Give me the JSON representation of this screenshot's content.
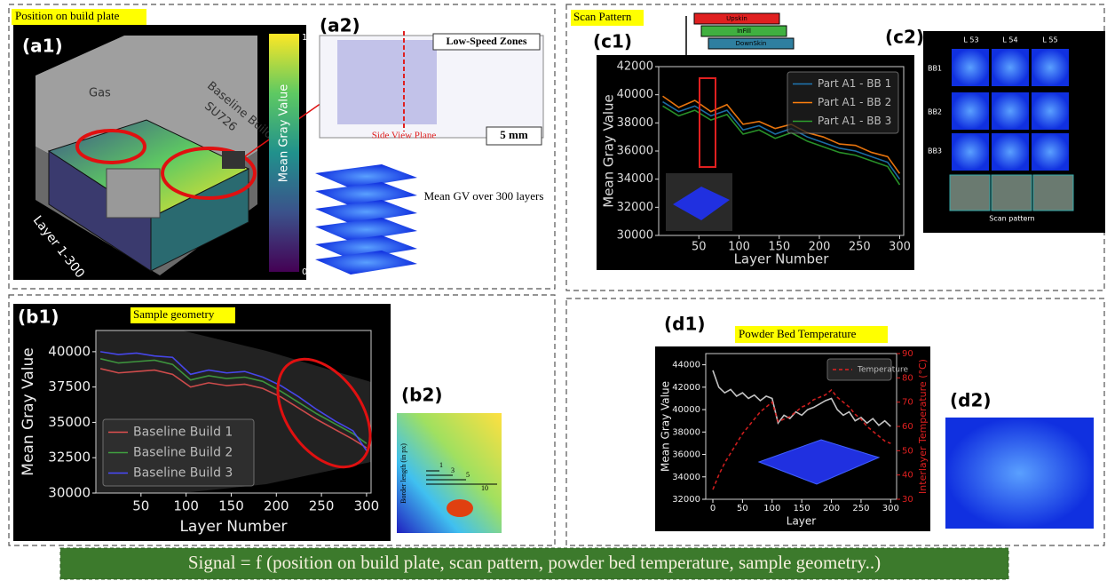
{
  "panels": {
    "a1": {
      "label": "(a1)",
      "header": "Position on build plate",
      "texts": [
        "Gas",
        "Baseline Build",
        "SU726",
        "Layer 1-300"
      ],
      "colorbar": {
        "label": "Mean Gray Value",
        "top": "1",
        "bottom": "0"
      }
    },
    "a2": {
      "label": "(a2)",
      "zones": "Low-Speed Zones",
      "plane": "Side View Plane",
      "scale": "5 mm",
      "caption": "Mean GV over 300 layers"
    },
    "c1": {
      "label": "(c1)",
      "header": "Scan Pattern",
      "stack": [
        "Upskin",
        "InFill",
        "DownSkin"
      ]
    },
    "c2": {
      "label": "(c2)",
      "columns": [
        "L 53",
        "L 54",
        "L 55"
      ],
      "rows": [
        "BB1",
        "BB2",
        "BB3"
      ],
      "caption": "Scan pattern"
    },
    "b1": {
      "label": "(b1)",
      "header": "Sample geometry"
    },
    "b2": {
      "label": "(b2)",
      "axis": "Border length (in px)",
      "marks": [
        "1",
        "3",
        "5",
        "10"
      ]
    },
    "d1": {
      "label": "(d1)",
      "header": "Powder Bed Temperature"
    },
    "d2": {
      "label": "(d2)"
    }
  },
  "chart_data": [
    {
      "type": "line",
      "xlabel": "Layer Number",
      "ylabel": "Mean Gray Value",
      "x": [
        5,
        25,
        45,
        65,
        85,
        105,
        125,
        145,
        165,
        185,
        205,
        225,
        245,
        265,
        285,
        300
      ],
      "xlim": [
        0,
        305
      ],
      "xticks": [
        50,
        100,
        150,
        200,
        250,
        300
      ],
      "ylim": [
        30000,
        42000
      ],
      "yticks": [
        30000,
        32000,
        34000,
        36000,
        38000,
        40000,
        42000
      ],
      "legend": "upper right",
      "series": [
        {
          "name": "Part A1 - BB 1",
          "color": "#1f77b4",
          "values": [
            39500,
            38800,
            39200,
            38500,
            38900,
            37500,
            37800,
            37200,
            37600,
            37000,
            36600,
            36200,
            36000,
            35600,
            35200,
            34000
          ]
        },
        {
          "name": "Part A1 - BB 2",
          "color": "#ff7f0e",
          "values": [
            39900,
            39100,
            39600,
            38800,
            39300,
            37900,
            38100,
            37600,
            37900,
            37300,
            37000,
            36500,
            36400,
            35900,
            35600,
            34400
          ]
        },
        {
          "name": "Part A1 - BB 3",
          "color": "#2ca02c",
          "values": [
            39200,
            38500,
            38900,
            38200,
            38600,
            37200,
            37500,
            36900,
            37300,
            36700,
            36300,
            35900,
            35700,
            35300,
            34900,
            33600
          ]
        }
      ]
    },
    {
      "type": "line",
      "xlabel": "Layer Number",
      "ylabel": "Mean Gray Value",
      "x": [
        5,
        25,
        45,
        65,
        85,
        105,
        125,
        145,
        165,
        185,
        205,
        225,
        245,
        265,
        285,
        300
      ],
      "xlim": [
        0,
        305
      ],
      "xticks": [
        50,
        100,
        150,
        200,
        250,
        300
      ],
      "ylim": [
        30000,
        41500
      ],
      "yticks": [
        30000,
        32500,
        35000,
        37500,
        40000
      ],
      "legend": "lower left",
      "series": [
        {
          "name": "Baseline Build 1",
          "color": "#e05050",
          "values": [
            38800,
            38500,
            38600,
            38700,
            38400,
            37500,
            37800,
            37600,
            37700,
            37400,
            36800,
            36000,
            35200,
            34500,
            33800,
            33200
          ]
        },
        {
          "name": "Baseline Build 2",
          "color": "#40a040",
          "values": [
            39500,
            39200,
            39300,
            39400,
            39100,
            38000,
            38300,
            38100,
            38200,
            37900,
            37200,
            36400,
            35600,
            34900,
            34200,
            33500
          ]
        },
        {
          "name": "Baseline Build 3",
          "color": "#4a4aff",
          "values": [
            40000,
            39800,
            39900,
            39700,
            39600,
            38400,
            38700,
            38500,
            38600,
            38200,
            37600,
            36800,
            35900,
            35100,
            34400,
            33000
          ]
        }
      ]
    },
    {
      "type": "line",
      "xlabel": "Layer",
      "ylabel": "Mean Gray Value",
      "y2label": "Interlayer Temperature (°C)",
      "x": [
        0,
        10,
        20,
        30,
        40,
        50,
        60,
        70,
        80,
        90,
        100,
        110,
        120,
        130,
        140,
        150,
        160,
        170,
        180,
        190,
        200,
        210,
        220,
        230,
        240,
        250,
        260,
        270,
        280,
        290,
        300
      ],
      "xlim": [
        -12,
        310
      ],
      "xticks": [
        0,
        50,
        100,
        150,
        200,
        250,
        300
      ],
      "ylim": [
        32000,
        45000
      ],
      "yticks": [
        32000,
        34000,
        36000,
        38000,
        40000,
        42000,
        44000
      ],
      "y2lim": [
        30,
        90
      ],
      "y2ticks": [
        30,
        40,
        50,
        60,
        70,
        80,
        90
      ],
      "legend": "upper right",
      "series": [
        {
          "color": "#d8d8d8",
          "values": [
            43500,
            42000,
            41500,
            41800,
            41200,
            41500,
            41000,
            41300,
            40800,
            41200,
            41000,
            38800,
            39500,
            39200,
            39800,
            39500,
            40000,
            40200,
            40500,
            40800,
            41000,
            40000,
            39500,
            39800,
            39000,
            39300,
            38800,
            39200,
            38600,
            39000,
            38500
          ]
        },
        {
          "name": "Temperature",
          "color": "#e02020",
          "axis": "y2",
          "style": "dashed",
          "values": [
            34,
            40,
            45,
            49,
            53,
            57,
            60,
            63,
            66,
            68,
            70,
            62,
            63,
            64,
            66,
            68,
            69,
            71,
            72,
            73,
            75,
            72,
            70,
            68,
            65,
            63,
            60,
            58,
            56,
            54,
            53
          ]
        }
      ]
    }
  ],
  "footer": "Signal = f (position on build plate, scan pattern, powder bed temperature, sample geometry..)"
}
